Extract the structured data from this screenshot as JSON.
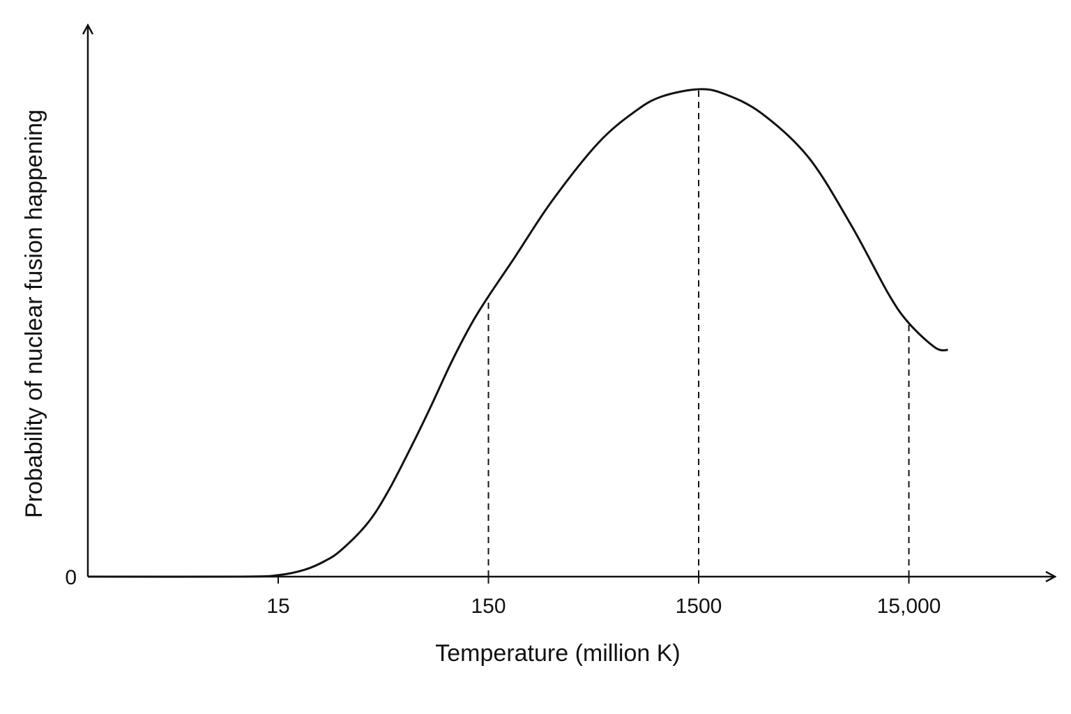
{
  "chart_data": {
    "type": "line",
    "xlabel": "Temperature (million K)",
    "ylabel": "Probability of nuclear fusion happening",
    "x_scale": "log",
    "x_ticks": [
      15,
      150,
      1500,
      15000
    ],
    "x_tick_labels": [
      "15",
      "150",
      "1500",
      "15,000"
    ],
    "y_ticks": [
      0
    ],
    "y_tick_labels": [
      "0"
    ],
    "xlim": [
      1.2,
      30000
    ],
    "ylim": [
      0,
      1
    ],
    "grid": false,
    "legend": "none",
    "reference_lines": [
      {
        "x": 150,
        "y": 0.575
      },
      {
        "x": 1500,
        "y": 1.0
      },
      {
        "x": 15000,
        "y": 0.52
      }
    ],
    "series": [
      {
        "points": [
          {
            "x": 1.2,
            "y": 0
          },
          {
            "x": 10,
            "y": 0
          },
          {
            "x": 15,
            "y": 0.003
          },
          {
            "x": 20,
            "y": 0.014
          },
          {
            "x": 25,
            "y": 0.032
          },
          {
            "x": 30,
            "y": 0.055
          },
          {
            "x": 40,
            "y": 0.11
          },
          {
            "x": 50,
            "y": 0.175
          },
          {
            "x": 65,
            "y": 0.27
          },
          {
            "x": 80,
            "y": 0.35
          },
          {
            "x": 100,
            "y": 0.44
          },
          {
            "x": 125,
            "y": 0.52
          },
          {
            "x": 150,
            "y": 0.575
          },
          {
            "x": 200,
            "y": 0.655
          },
          {
            "x": 300,
            "y": 0.77
          },
          {
            "x": 500,
            "y": 0.89
          },
          {
            "x": 750,
            "y": 0.955
          },
          {
            "x": 1000,
            "y": 0.985
          },
          {
            "x": 1500,
            "y": 1.0
          },
          {
            "x": 2000,
            "y": 0.99
          },
          {
            "x": 3000,
            "y": 0.95
          },
          {
            "x": 5000,
            "y": 0.86
          },
          {
            "x": 8000,
            "y": 0.72
          },
          {
            "x": 12000,
            "y": 0.58
          },
          {
            "x": 15000,
            "y": 0.52
          },
          {
            "x": 20000,
            "y": 0.47
          },
          {
            "x": 23000,
            "y": 0.465
          }
        ]
      }
    ]
  }
}
